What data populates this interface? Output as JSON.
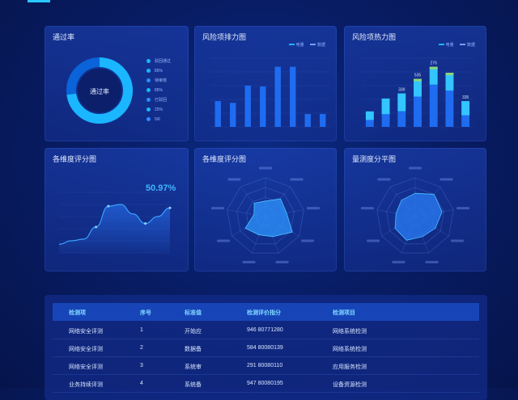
{
  "colors": {
    "accent": "#29c8ff",
    "bar": "#1f6cf0",
    "bar_light": "#33c5ff",
    "panel": "#16389f"
  },
  "pass_rate": {
    "title": "通过率",
    "center_label": "通过率",
    "legend": [
      "驳回通过",
      "85%",
      "待审核",
      "85%",
      "已驳回",
      "25%",
      "5/6"
    ]
  },
  "risk_bar": {
    "title": "风险项排力图",
    "legend": [
      "电量",
      "数据"
    ],
    "chart_data": {
      "type": "bar",
      "values": [
        30,
        28,
        48,
        47,
        70,
        70,
        15,
        15
      ]
    }
  },
  "risk_heat": {
    "title": "风险项热力图",
    "legend": [
      "电量",
      "数据"
    ],
    "chart_data": {
      "type": "bar",
      "values": [
        18,
        33,
        39,
        56,
        70,
        63,
        30
      ],
      "labels": [
        "",
        "",
        "339",
        "535",
        "276",
        "",
        "335"
      ]
    }
  },
  "line_chart": {
    "title": "各维度评分图",
    "value": "50.97%",
    "chart_data": {
      "type": "area",
      "values": [
        10,
        14,
        16,
        30,
        54,
        56,
        45,
        34,
        42,
        52
      ]
    }
  },
  "radar1": {
    "title": "各维度评分图",
    "chart_data": {
      "type": "radar",
      "values": [
        0.4,
        0.6,
        0.55,
        0.8,
        0.55,
        0.5,
        0.6,
        0.3,
        0.45
      ]
    }
  },
  "radar2": {
    "title": "量测度分平图",
    "chart_data": {
      "type": "radar",
      "values": [
        0.6,
        0.75,
        0.7,
        0.6,
        0.55,
        0.65,
        0.6,
        0.5,
        0.55
      ]
    }
  },
  "table": {
    "headers": [
      "检测项",
      "序号",
      "标准值",
      "检测评价指分",
      "检测项目"
    ],
    "rows": [
      [
        "网络安全评测",
        "1",
        "开始应",
        "946 80771280",
        "网络系统检测"
      ],
      [
        "网络安全评测",
        "2",
        "数据备",
        "584 80080139",
        "网络系统检测"
      ],
      [
        "网络安全评测",
        "3",
        "系统审",
        "291 80080110",
        "应用服务检测"
      ],
      [
        "业务持续评测",
        "4",
        "系统备",
        "947 80080195",
        "设备资源检测"
      ]
    ]
  }
}
